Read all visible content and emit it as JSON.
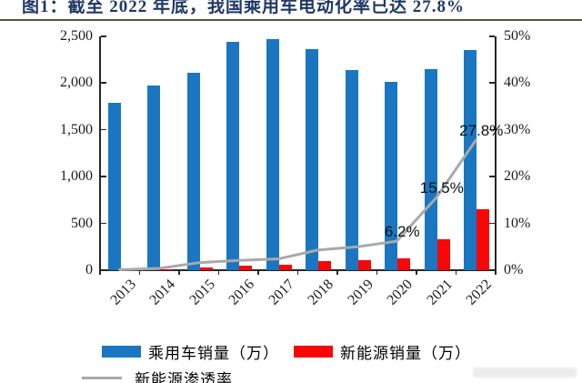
{
  "figure": {
    "title": "图1：截至 2022 年底，我国乘用车电动化率已达 27.8%"
  },
  "chart_data": {
    "type": "combo",
    "title": "图1：截至 2022 年底，我国乘用车电动化率已达 27.8%",
    "categories": [
      "2013",
      "2014",
      "2015",
      "2016",
      "2017",
      "2018",
      "2019",
      "2020",
      "2021",
      "2022"
    ],
    "series": [
      {
        "name": "乘用车销量（万）",
        "type": "bar",
        "axis": "left",
        "color": "#1A76C0",
        "values": [
          1793,
          1970,
          2110,
          2438,
          2472,
          2367,
          2144,
          2015,
          2146,
          2356
        ]
      },
      {
        "name": "新能源销量（万）",
        "type": "bar",
        "axis": "left",
        "color": "#F90606",
        "values": [
          2,
          8,
          33,
          51,
          58,
          101,
          106,
          125,
          333,
          655
        ]
      },
      {
        "name": "新能源渗透率",
        "type": "line",
        "axis": "right",
        "color": "#A9A9A9",
        "values": [
          0.1,
          0.4,
          1.6,
          2.1,
          2.4,
          4.3,
          5.0,
          6.2,
          15.5,
          27.8
        ]
      }
    ],
    "left_axis": {
      "min": 0,
      "max": 2500,
      "ticks": [
        "0",
        "500",
        "1,000",
        "1,500",
        "2,000",
        "2,500"
      ]
    },
    "right_axis": {
      "min": 0,
      "max": 50,
      "ticks": [
        "0%",
        "10%",
        "20%",
        "30%",
        "40%",
        "50%"
      ]
    },
    "annotations": [
      {
        "text": "6.2%",
        "category": "2020",
        "index": 7
      },
      {
        "text": "15.5%",
        "category": "2021",
        "index": 8
      },
      {
        "text": "27.8%",
        "category": "2022",
        "index": 9
      }
    ],
    "legend_position": "bottom",
    "grid": false
  },
  "colors": {
    "title": "#1F3864",
    "bar_blue": "#1A76C0",
    "bar_red": "#F90606",
    "line_gray": "#A9A9A9",
    "axis": "#262626"
  }
}
